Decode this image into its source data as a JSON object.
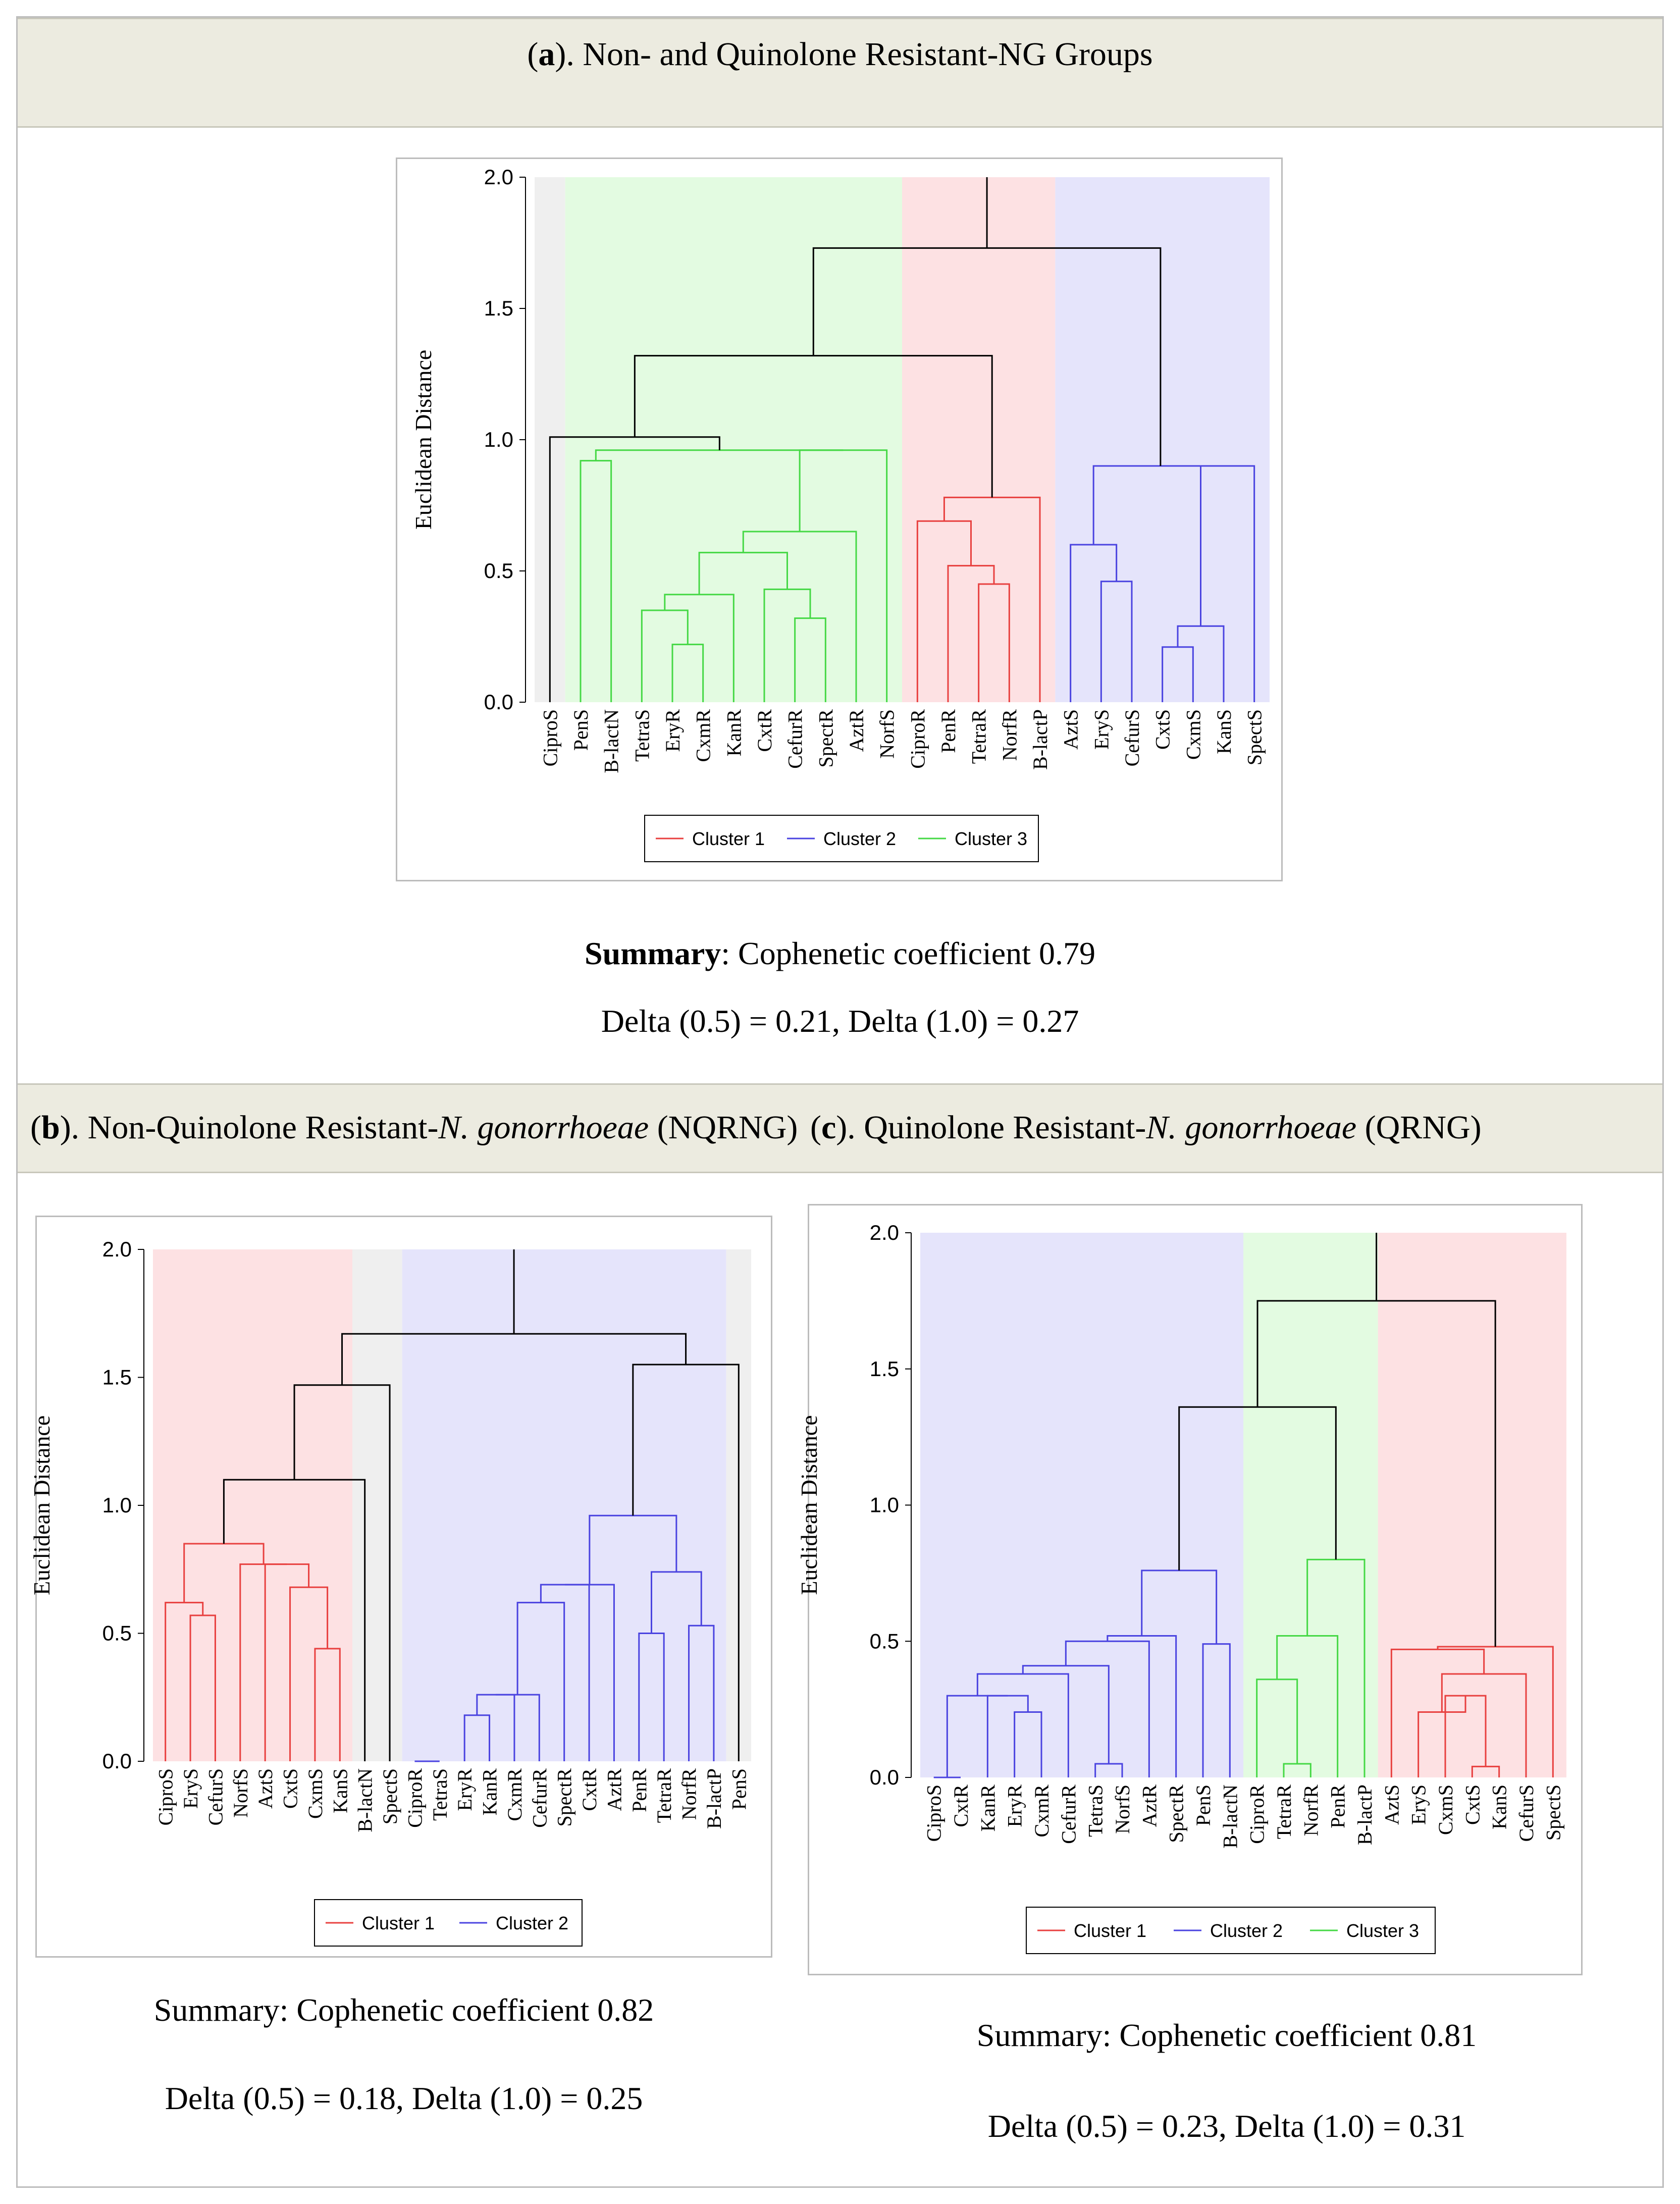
{
  "panels": {
    "a": {
      "label_letter": "a",
      "label_rest": "). Non- and Quinolone Resistant-NG Groups",
      "summary_bold": "Summary",
      "summary_rest": ": Cophenetic coefficient 0.79",
      "delta": "Delta (0.5) = 0.21, Delta (1.0) = 0.27"
    },
    "b": {
      "label_letter": "b",
      "label_mid": "). Non-Quinolone Resistant-",
      "label_italic": "N. gonorrhoeae",
      "label_end": " (NQRNG)",
      "summary": "Summary: Cophenetic coefficient 0.82",
      "delta": "Delta (0.5) = 0.18, Delta (1.0) = 0.25"
    },
    "c": {
      "label_letter": "c",
      "label_mid": "). Quinolone Resistant-",
      "label_italic": "N. gonorrhoeae",
      "label_end": " (QRNG)",
      "summary": "Summary: Cophenetic coefficient 0.81",
      "delta": "Delta (0.5) = 0.23, Delta (1.0) = 0.31"
    }
  },
  "colors": {
    "red": "#e8403f",
    "blue": "#4a43e0",
    "green": "#45d845",
    "black": "#000000",
    "bg_red": "#fde1e3",
    "bg_blue": "#e5e4fb",
    "bg_green": "#e3fbe1",
    "bg_gray": "#efefef"
  },
  "chart_data": [
    {
      "type": "dendrogram",
      "title": "(a). Non- and Quinolone Resistant-NG Groups",
      "ylabel": "Euclidean Distance",
      "ylim": [
        0,
        2.0
      ],
      "yticks": [
        "0.0",
        "0.5",
        "1.0",
        "1.5",
        "2.0"
      ],
      "leaves": [
        "CiproS",
        "PenS",
        "B-lactN",
        "TetraS",
        "EryR",
        "CxmR",
        "KanR",
        "CxtR",
        "CefurR",
        "SpectR",
        "AztR",
        "NorfS",
        "CiproR",
        "PenR",
        "TetraR",
        "NorfR",
        "B-lactP",
        "AztS",
        "EryS",
        "CefurS",
        "CxtS",
        "CxmS",
        "KanS",
        "SpectS"
      ],
      "legend": [
        {
          "name": "Cluster 1",
          "color": "red"
        },
        {
          "name": "Cluster 2",
          "color": "blue"
        },
        {
          "name": "Cluster 3",
          "color": "green"
        }
      ],
      "bands": [
        {
          "from": 0,
          "to": 0,
          "color": "bg_gray"
        },
        {
          "from": 1,
          "to": 11,
          "color": "bg_green"
        },
        {
          "from": 12,
          "to": 16,
          "color": "bg_red"
        },
        {
          "from": 17,
          "to": 23,
          "color": "bg_blue"
        }
      ],
      "merges": [
        {
          "a": [
            "L",
            4
          ],
          "b": [
            "L",
            5
          ],
          "h": 0.22,
          "c": "green"
        },
        {
          "a": [
            "L",
            3
          ],
          "b": [
            "M",
            0
          ],
          "h": 0.35,
          "c": "green"
        },
        {
          "a": [
            "M",
            1
          ],
          "b": [
            "L",
            6
          ],
          "h": 0.41,
          "c": "green"
        },
        {
          "a": [
            "L",
            8
          ],
          "b": [
            "L",
            9
          ],
          "h": 0.32,
          "c": "green"
        },
        {
          "a": [
            "L",
            7
          ],
          "b": [
            "M",
            3
          ],
          "h": 0.43,
          "c": "green"
        },
        {
          "a": [
            "M",
            2
          ],
          "b": [
            "M",
            4
          ],
          "h": 0.57,
          "c": "green"
        },
        {
          "a": [
            "M",
            5
          ],
          "b": [
            "L",
            10
          ],
          "h": 0.65,
          "c": "green"
        },
        {
          "a": [
            "M",
            6
          ],
          "b": [
            "L",
            11
          ],
          "h": 0.96,
          "c": "green"
        },
        {
          "a": [
            "L",
            1
          ],
          "b": [
            "L",
            2
          ],
          "h": 0.92,
          "c": "green"
        },
        {
          "a": [
            "M",
            8
          ],
          "b": [
            "M",
            7
          ],
          "h": 0.96,
          "c": "green"
        },
        {
          "a": [
            "L",
            0
          ],
          "b": [
            "M",
            9
          ],
          "h": 1.01,
          "c": "black"
        },
        {
          "a": [
            "L",
            14
          ],
          "b": [
            "L",
            15
          ],
          "h": 0.45,
          "c": "red"
        },
        {
          "a": [
            "L",
            13
          ],
          "b": [
            "M",
            11
          ],
          "h": 0.52,
          "c": "red"
        },
        {
          "a": [
            "L",
            12
          ],
          "b": [
            "M",
            12
          ],
          "h": 0.69,
          "c": "red"
        },
        {
          "a": [
            "M",
            13
          ],
          "b": [
            "L",
            16
          ],
          "h": 0.78,
          "c": "red"
        },
        {
          "a": [
            "M",
            10
          ],
          "b": [
            "M",
            14
          ],
          "h": 1.32,
          "c": "black"
        },
        {
          "a": [
            "L",
            18
          ],
          "b": [
            "L",
            19
          ],
          "h": 0.46,
          "c": "blue"
        },
        {
          "a": [
            "L",
            17
          ],
          "b": [
            "M",
            16
          ],
          "h": 0.6,
          "c": "blue"
        },
        {
          "a": [
            "L",
            20
          ],
          "b": [
            "L",
            21
          ],
          "h": 0.21,
          "c": "blue"
        },
        {
          "a": [
            "M",
            18
          ],
          "b": [
            "L",
            22
          ],
          "h": 0.29,
          "c": "blue"
        },
        {
          "a": [
            "M",
            19
          ],
          "b": [
            "L",
            23
          ],
          "h": 0.9,
          "c": "blue"
        },
        {
          "a": [
            "M",
            17
          ],
          "b": [
            "M",
            20
          ],
          "h": 0.9,
          "c": "blue"
        },
        {
          "a": [
            "M",
            15
          ],
          "b": [
            "M",
            21
          ],
          "h": 1.73,
          "c": "black"
        }
      ],
      "root_top": 2.0
    },
    {
      "type": "dendrogram",
      "title": "(b). Non-Quinolone Resistant-N. gonorrhoeae (NQRNG)",
      "ylabel": "Euclidean Distance",
      "ylim": [
        0,
        2.0
      ],
      "yticks": [
        "0.0",
        "0.5",
        "1.0",
        "1.5",
        "2.0"
      ],
      "leaves": [
        "CiproS",
        "EryS",
        "CefurS",
        "NorfS",
        "AztS",
        "CxtS",
        "CxmS",
        "KanS",
        "B-lactN",
        "SpectS",
        "CiproR",
        "TetraS",
        "EryR",
        "KanR",
        "CxmR",
        "CefurR",
        "SpectR",
        "CxtR",
        "AztR",
        "PenR",
        "TetraR",
        "NorfR",
        "B-lactP",
        "PenS"
      ],
      "legend": [
        {
          "name": "Cluster 1",
          "color": "red"
        },
        {
          "name": "Cluster 2",
          "color": "blue"
        }
      ],
      "bands": [
        {
          "from": 0,
          "to": 7,
          "color": "bg_red"
        },
        {
          "from": 8,
          "to": 9,
          "color": "bg_gray"
        },
        {
          "from": 10,
          "to": 22,
          "color": "bg_blue"
        },
        {
          "from": 23,
          "to": 23,
          "color": "bg_gray"
        }
      ],
      "merges": [
        {
          "a": [
            "L",
            1
          ],
          "b": [
            "L",
            2
          ],
          "h": 0.57,
          "c": "red"
        },
        {
          "a": [
            "L",
            0
          ],
          "b": [
            "M",
            0
          ],
          "h": 0.62,
          "c": "red"
        },
        {
          "a": [
            "L",
            6
          ],
          "b": [
            "L",
            7
          ],
          "h": 0.44,
          "c": "red"
        },
        {
          "a": [
            "L",
            5
          ],
          "b": [
            "M",
            2
          ],
          "h": 0.68,
          "c": "red"
        },
        {
          "a": [
            "L",
            4
          ],
          "b": [
            "M",
            3
          ],
          "h": 0.77,
          "c": "red"
        },
        {
          "a": [
            "L",
            3
          ],
          "b": [
            "M",
            4
          ],
          "h": 0.77,
          "c": "red"
        },
        {
          "a": [
            "M",
            1
          ],
          "b": [
            "M",
            5
          ],
          "h": 0.85,
          "c": "red"
        },
        {
          "a": [
            "M",
            6
          ],
          "b": [
            "L",
            8
          ],
          "h": 1.1,
          "c": "black"
        },
        {
          "a": [
            "M",
            7
          ],
          "b": [
            "L",
            9
          ],
          "h": 1.47,
          "c": "black"
        },
        {
          "a": [
            "L",
            10
          ],
          "b": [
            "L",
            11
          ],
          "h": 0.0,
          "c": "blue"
        },
        {
          "a": [
            "L",
            12
          ],
          "b": [
            "L",
            13
          ],
          "h": 0.18,
          "c": "blue"
        },
        {
          "a": [
            "M",
            10
          ],
          "b": [
            "L",
            14
          ],
          "h": 0.26,
          "c": "blue"
        },
        {
          "a": [
            "M",
            11
          ],
          "b": [
            "L",
            15
          ],
          "h": 0.26,
          "c": "blue"
        },
        {
          "a": [
            "M",
            12
          ],
          "b": [
            "L",
            16
          ],
          "h": 0.62,
          "c": "blue"
        },
        {
          "a": [
            "M",
            13
          ],
          "b": [
            "L",
            17
          ],
          "h": 0.69,
          "c": "blue"
        },
        {
          "a": [
            "M",
            14
          ],
          "b": [
            "L",
            18
          ],
          "h": 0.69,
          "c": "blue"
        },
        {
          "a": [
            "L",
            19
          ],
          "b": [
            "L",
            20
          ],
          "h": 0.5,
          "c": "blue"
        },
        {
          "a": [
            "L",
            21
          ],
          "b": [
            "L",
            22
          ],
          "h": 0.53,
          "c": "blue"
        },
        {
          "a": [
            "M",
            16
          ],
          "b": [
            "M",
            17
          ],
          "h": 0.74,
          "c": "blue"
        },
        {
          "a": [
            "M",
            15
          ],
          "b": [
            "M",
            18
          ],
          "h": 0.96,
          "c": "blue"
        },
        {
          "a": [
            "M",
            19
          ],
          "b": [
            "L",
            23
          ],
          "h": 1.55,
          "c": "black"
        },
        {
          "a": [
            "M",
            8
          ],
          "b": [
            "M",
            20
          ],
          "h": 1.67,
          "c": "black"
        }
      ],
      "root_top": 2.0
    },
    {
      "type": "dendrogram",
      "title": "(c). Quinolone Resistant-N. gonorrhoeae (QRNG)",
      "ylabel": "Euclidean Distance",
      "ylim": [
        0,
        2.0
      ],
      "yticks": [
        "0.0",
        "0.5",
        "1.0",
        "1.5",
        "2.0"
      ],
      "leaves": [
        "CiproS",
        "CxtR",
        "KanR",
        "EryR",
        "CxmR",
        "CefurR",
        "TetraS",
        "NorfS",
        "AztR",
        "SpectR",
        "PenS",
        "B-lactN",
        "CiproR",
        "TetraR",
        "NorfR",
        "PenR",
        "B-lactP",
        "AztS",
        "EryS",
        "CxmS",
        "CxtS",
        "KanS",
        "CefurS",
        "SpectS"
      ],
      "legend": [
        {
          "name": "Cluster 1",
          "color": "red"
        },
        {
          "name": "Cluster 2",
          "color": "blue"
        },
        {
          "name": "Cluster 3",
          "color": "green"
        }
      ],
      "bands": [
        {
          "from": 0,
          "to": 11,
          "color": "bg_blue"
        },
        {
          "from": 12,
          "to": 16,
          "color": "bg_green"
        },
        {
          "from": 17,
          "to": 23,
          "color": "bg_red"
        }
      ],
      "merges": [
        {
          "a": [
            "L",
            0
          ],
          "b": [
            "L",
            1
          ],
          "h": 0.0,
          "c": "blue"
        },
        {
          "a": [
            "L",
            3
          ],
          "b": [
            "L",
            4
          ],
          "h": 0.24,
          "c": "blue"
        },
        {
          "a": [
            "L",
            2
          ],
          "b": [
            "M",
            1
          ],
          "h": 0.3,
          "c": "blue"
        },
        {
          "a": [
            "M",
            0
          ],
          "b": [
            "M",
            2
          ],
          "h": 0.3,
          "c": "blue"
        },
        {
          "a": [
            "M",
            3
          ],
          "b": [
            "L",
            5
          ],
          "h": 0.38,
          "c": "blue"
        },
        {
          "a": [
            "L",
            6
          ],
          "b": [
            "L",
            7
          ],
          "h": 0.05,
          "c": "blue"
        },
        {
          "a": [
            "M",
            4
          ],
          "b": [
            "M",
            5
          ],
          "h": 0.41,
          "c": "blue"
        },
        {
          "a": [
            "M",
            6
          ],
          "b": [
            "L",
            8
          ],
          "h": 0.5,
          "c": "blue"
        },
        {
          "a": [
            "M",
            7
          ],
          "b": [
            "L",
            9
          ],
          "h": 0.52,
          "c": "blue"
        },
        {
          "a": [
            "L",
            10
          ],
          "b": [
            "L",
            11
          ],
          "h": 0.49,
          "c": "blue"
        },
        {
          "a": [
            "M",
            8
          ],
          "b": [
            "M",
            9
          ],
          "h": 0.76,
          "c": "blue"
        },
        {
          "a": [
            "L",
            13
          ],
          "b": [
            "L",
            14
          ],
          "h": 0.05,
          "c": "green"
        },
        {
          "a": [
            "L",
            12
          ],
          "b": [
            "M",
            11
          ],
          "h": 0.36,
          "c": "green"
        },
        {
          "a": [
            "M",
            12
          ],
          "b": [
            "L",
            15
          ],
          "h": 0.52,
          "c": "green"
        },
        {
          "a": [
            "M",
            13
          ],
          "b": [
            "L",
            16
          ],
          "h": 0.8,
          "c": "green"
        },
        {
          "a": [
            "M",
            10
          ],
          "b": [
            "M",
            14
          ],
          "h": 1.36,
          "c": "black"
        },
        {
          "a": [
            "L",
            20
          ],
          "b": [
            "L",
            21
          ],
          "h": 0.04,
          "c": "red"
        },
        {
          "a": [
            "L",
            19
          ],
          "b": [
            "M",
            16
          ],
          "h": 0.3,
          "c": "red"
        },
        {
          "a": [
            "L",
            18
          ],
          "b": [
            "M",
            17
          ],
          "h": 0.24,
          "c": "red"
        },
        {
          "a": [
            "M",
            18
          ],
          "b": [
            "L",
            22
          ],
          "h": 0.38,
          "c": "red"
        },
        {
          "a": [
            "L",
            17
          ],
          "b": [
            "M",
            19
          ],
          "h": 0.47,
          "c": "red"
        },
        {
          "a": [
            "M",
            20
          ],
          "b": [
            "L",
            23
          ],
          "h": 0.48,
          "c": "red"
        },
        {
          "a": [
            "M",
            15
          ],
          "b": [
            "M",
            21
          ],
          "h": 1.75,
          "c": "black"
        }
      ],
      "root_top": 2.0
    }
  ]
}
